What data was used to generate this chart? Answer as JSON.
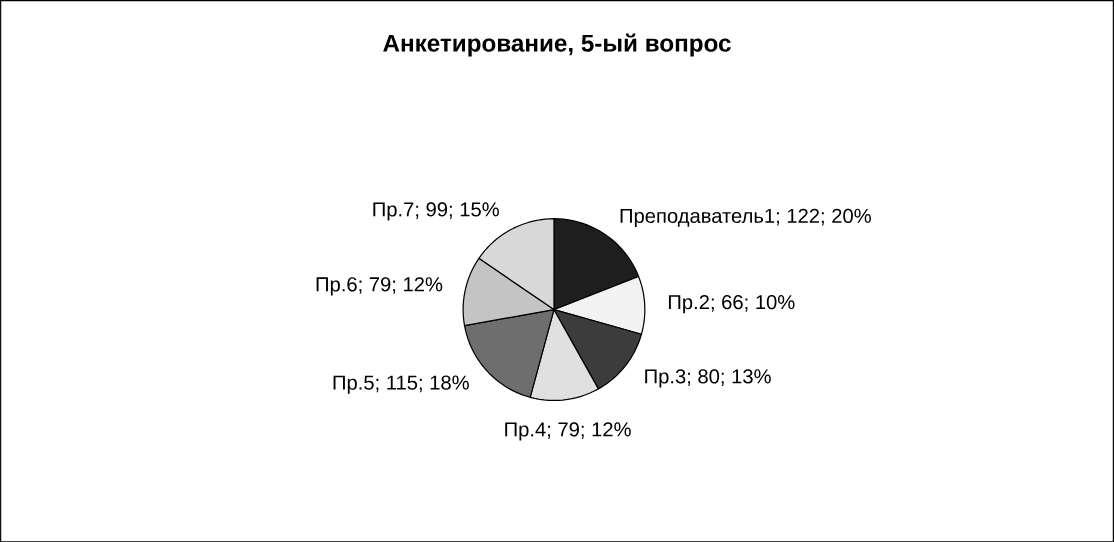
{
  "chart_data": {
    "type": "pie",
    "title": "Анкетирование, 5-ый вопрос",
    "categories": [
      "Преподаватель1; 122; 20%",
      "Пр.2; 66; 10%",
      "Пр.3; 80; 13%",
      "Пр.4; 79; 12%",
      "Пр.5; 115; 18%",
      "Пр.6; 79; 12%",
      "Пр.7; 99; 15%"
    ],
    "values": [
      122,
      66,
      80,
      79,
      115,
      79,
      99
    ],
    "colors": [
      "#1e1e1e",
      "#f2f2f2",
      "#3c3c3c",
      "#e0e0e0",
      "#6e6e6e",
      "#c4c4c4",
      "#d8d8d8"
    ]
  }
}
